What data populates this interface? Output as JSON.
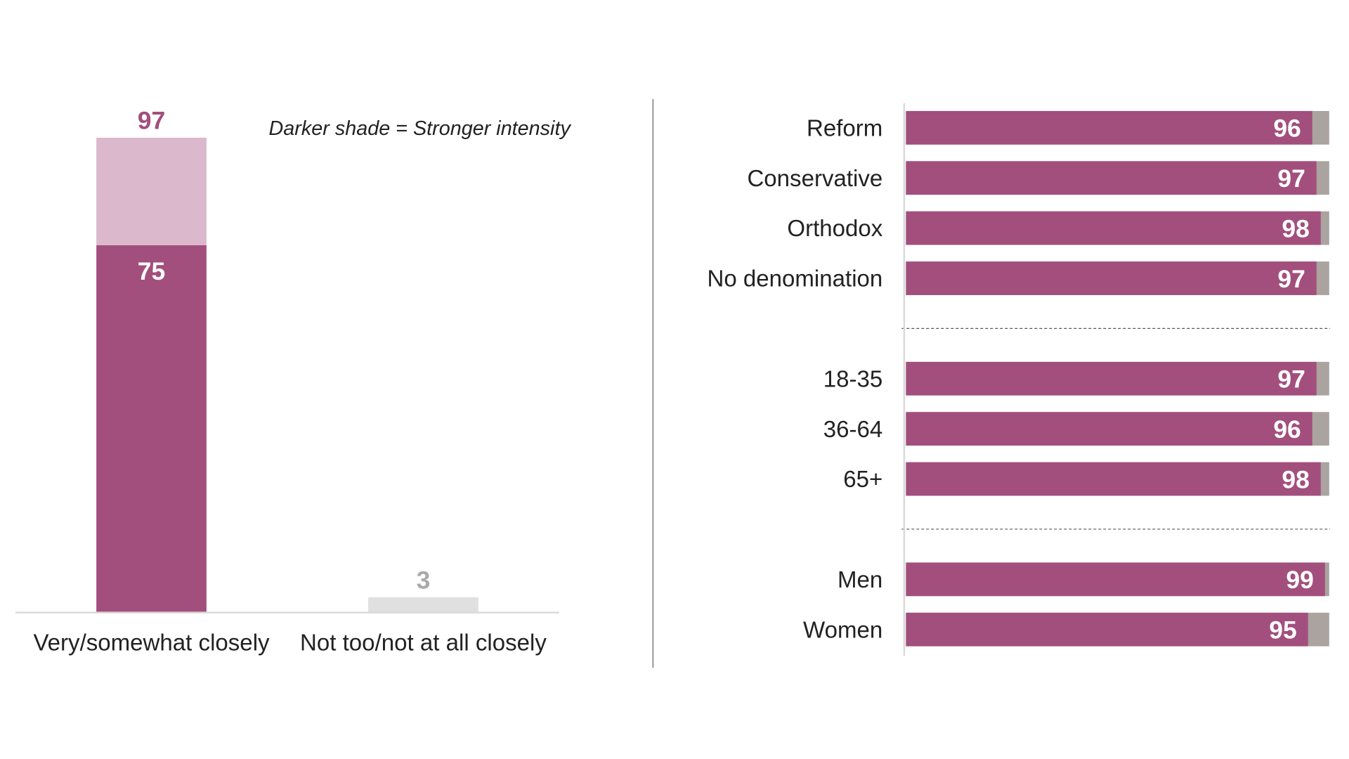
{
  "chart_data": [
    {
      "type": "bar",
      "stacked": true,
      "categories": [
        "Very/somewhat closely",
        "Not too/not at all closely"
      ],
      "series": [
        {
          "values": [
            75,
            0
          ]
        },
        {
          "values": [
            22,
            3
          ]
        }
      ],
      "total_labels": [
        "97",
        "3"
      ],
      "inner_labels": [
        "75",
        ""
      ],
      "annotation": "Darker shade = Stronger intensity",
      "ylim": [
        0,
        100
      ],
      "grid": false,
      "colors": {
        "strong": "#a24f7d",
        "light": "#dbb8cb",
        "low": "#e0e0e0",
        "total_label": "#a24f7d",
        "low_label": "#aaaaaa"
      }
    },
    {
      "type": "bar",
      "orientation": "horizontal",
      "stacked": true,
      "groups": [
        {
          "rows": [
            {
              "label": "Reform",
              "value": 96
            },
            {
              "label": "Conservative",
              "value": 97
            },
            {
              "label": "Orthodox",
              "value": 98
            },
            {
              "label": "No denomination",
              "value": 97
            }
          ]
        },
        {
          "rows": [
            {
              "label": "18-35",
              "value": 97
            },
            {
              "label": "36-64",
              "value": 96
            },
            {
              "label": "65+",
              "value": 98
            }
          ]
        },
        {
          "rows": [
            {
              "label": "Men",
              "value": 99
            },
            {
              "label": "Women",
              "value": 95
            }
          ]
        }
      ],
      "xlim": [
        0,
        100
      ],
      "grid": false,
      "colors": {
        "main": "#a24f7d",
        "remainder": "#aaa39f",
        "label_text": "#ffffff"
      }
    }
  ]
}
